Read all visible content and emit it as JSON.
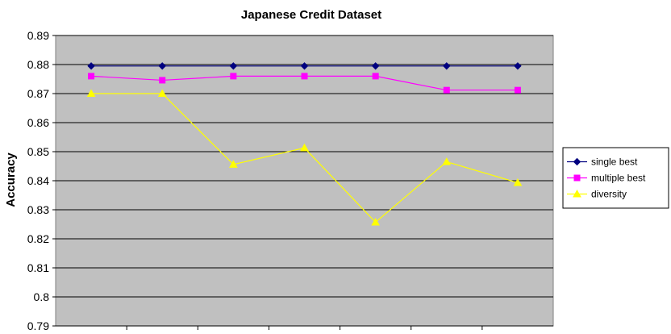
{
  "chart_data": {
    "type": "line",
    "title": "Japanese Credit Dataset",
    "xlabel": "",
    "ylabel": "Accuracy",
    "ylim": [
      0.79,
      0.89
    ],
    "yticks": [
      "0.89",
      "0.88",
      "0.87",
      "0.86",
      "0.85",
      "0.84",
      "0.83",
      "0.82",
      "0.81",
      "0.8",
      "0.79"
    ],
    "grid": true,
    "legend_position": "right",
    "plot_background": "#c0c0c0",
    "series": [
      {
        "name": "single best",
        "color": "#000080",
        "marker": "diamond",
        "values": [
          0.8795,
          0.8795,
          0.8795,
          0.8795,
          0.8795,
          0.8795,
          0.8795
        ]
      },
      {
        "name": "multiple best",
        "color": "#ff00ff",
        "marker": "square",
        "values": [
          0.876,
          0.8746,
          0.876,
          0.876,
          0.876,
          0.8712,
          0.8712
        ]
      },
      {
        "name": "diversity",
        "color": "#ffff00",
        "marker": "triangle",
        "values": [
          0.87,
          0.87,
          0.8456,
          0.8513,
          0.8257,
          0.8465,
          0.8393
        ]
      }
    ]
  }
}
